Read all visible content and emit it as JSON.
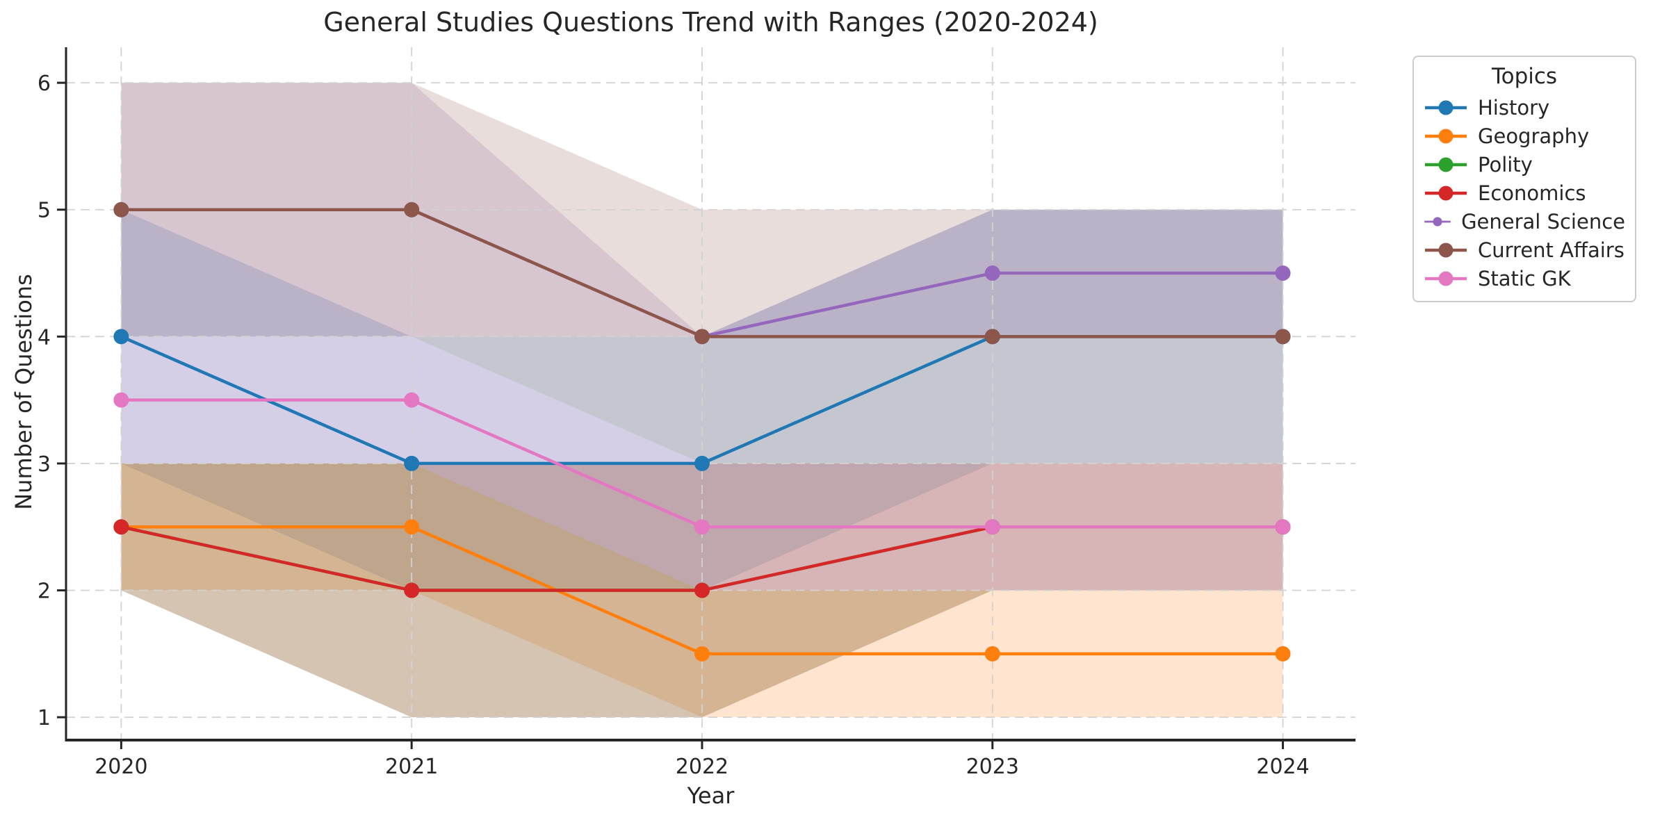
{
  "figure": {
    "background": "#ffffff",
    "text_color": "#262626",
    "grid_color": "#d2d2d2",
    "spine_color": "#262626"
  },
  "chart_data": {
    "type": "line",
    "title": "General Studies Questions Trend with Ranges (2020-2024)",
    "xlabel": "Year",
    "ylabel": "Number of Questions",
    "legend_title": "Topics",
    "legend_position": "outside upper right",
    "grid": "dashed",
    "band_alpha": 0.2,
    "x": [
      2020,
      2021,
      2022,
      2023,
      2024
    ],
    "yticks": [
      1,
      2,
      3,
      4,
      5,
      6
    ],
    "xlim": [
      2019.81,
      2024.25
    ],
    "ylim": [
      0.82,
      6.28
    ],
    "series": [
      {
        "name": "History",
        "color": "#1f77b4",
        "values": [
          4,
          3,
          3,
          4,
          4
        ],
        "range_low": [
          3,
          2,
          2,
          3,
          3
        ],
        "range_high": [
          5,
          4,
          4,
          5,
          5
        ]
      },
      {
        "name": "Geography",
        "color": "#ff7f0e",
        "values": [
          2.5,
          2.5,
          1.5,
          1.5,
          1.5
        ],
        "range_low": [
          2,
          2,
          1,
          1,
          1
        ],
        "range_high": [
          3,
          3,
          2,
          2,
          2
        ]
      },
      {
        "name": "Polity",
        "color": "#2ca02c",
        "values": [
          2.5,
          2,
          2,
          2.5,
          2.5
        ],
        "range_low": [
          2,
          1,
          1,
          2,
          2
        ],
        "range_high": [
          3,
          3,
          3,
          3,
          3
        ]
      },
      {
        "name": "Economics",
        "color": "#d62728",
        "values": [
          2.5,
          2,
          2,
          2.5,
          2.5
        ],
        "range_low": [
          2,
          1,
          1,
          2,
          2
        ],
        "range_high": [
          3,
          3,
          3,
          3,
          3
        ]
      },
      {
        "name": "General Science",
        "color": "#9467bd",
        "values": [
          5,
          5,
          4,
          4.5,
          4.5
        ],
        "range_low": [
          4,
          4,
          4,
          4,
          4
        ],
        "range_high": [
          6,
          6,
          4,
          5,
          5
        ]
      },
      {
        "name": "Current Affairs",
        "color": "#8c564b",
        "values": [
          5,
          5,
          4,
          4,
          4
        ],
        "range_low": [
          4,
          4,
          3,
          3,
          3
        ],
        "range_high": [
          6,
          6,
          5,
          5,
          5
        ]
      },
      {
        "name": "Static GK",
        "color": "#e377c2",
        "values": [
          3.5,
          3.5,
          2.5,
          2.5,
          2.5
        ],
        "range_low": [
          3,
          3,
          2,
          2,
          2
        ],
        "range_high": [
          4,
          4,
          3,
          3,
          3
        ]
      }
    ]
  }
}
